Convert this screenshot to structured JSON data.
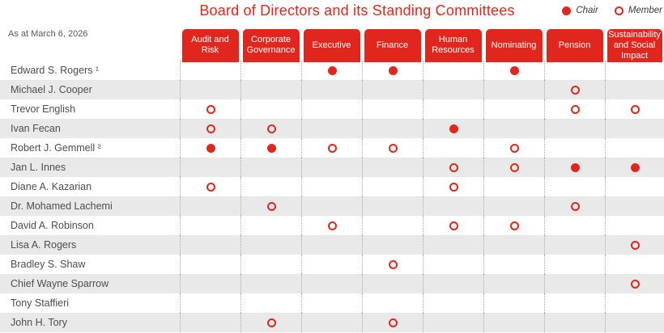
{
  "title": "Board of Directors and its Standing Committees",
  "as_at": "As at March 6, 2026",
  "legend": {
    "chair_label": "Chair",
    "member_label": "Member",
    "chair_icon": "filled-circle-icon",
    "member_icon": "open-circle-icon"
  },
  "colors": {
    "red": "#E1261D",
    "stripe": "#E9E9E9",
    "divider": "#ABABAB",
    "text": "#4E4E4E"
  },
  "columns": [
    "Audit and Risk",
    "Corporate Governance",
    "Executive",
    "Finance",
    "Human Resources",
    "Nominating",
    "Pension",
    "Sustainability and Social Impact"
  ],
  "rows": [
    {
      "name": "Edward S. Rogers ¹",
      "cells": [
        "",
        "",
        "chair",
        "chair",
        "",
        "chair",
        "",
        ""
      ]
    },
    {
      "name": "Michael J. Cooper",
      "cells": [
        "",
        "",
        "",
        "",
        "",
        "",
        "member",
        ""
      ]
    },
    {
      "name": "Trevor English",
      "cells": [
        "member",
        "",
        "",
        "",
        "",
        "",
        "member",
        "member"
      ]
    },
    {
      "name": "Ivan Fecan",
      "cells": [
        "member",
        "member",
        "",
        "",
        "chair",
        "",
        "",
        ""
      ]
    },
    {
      "name": "Robert J. Gemmell ²",
      "cells": [
        "chair",
        "chair",
        "member",
        "member",
        "",
        "member",
        "",
        ""
      ]
    },
    {
      "name": "Jan L. Innes",
      "cells": [
        "",
        "",
        "",
        "",
        "member",
        "member",
        "chair",
        "chair"
      ]
    },
    {
      "name": "Diane A. Kazarian",
      "cells": [
        "member",
        "",
        "",
        "",
        "member",
        "",
        "",
        ""
      ]
    },
    {
      "name": "Dr. Mohamed Lachemi",
      "cells": [
        "",
        "member",
        "",
        "",
        "",
        "",
        "member",
        ""
      ]
    },
    {
      "name": "David A. Robinson",
      "cells": [
        "",
        "",
        "member",
        "",
        "member",
        "member",
        "",
        ""
      ]
    },
    {
      "name": "Lisa A. Rogers",
      "cells": [
        "",
        "",
        "",
        "",
        "",
        "",
        "",
        "member"
      ]
    },
    {
      "name": "Bradley S. Shaw",
      "cells": [
        "",
        "",
        "",
        "member",
        "",
        "",
        "",
        ""
      ]
    },
    {
      "name": "Chief Wayne Sparrow",
      "cells": [
        "",
        "",
        "",
        "",
        "",
        "",
        "",
        "member"
      ]
    },
    {
      "name": "Tony Staffieri",
      "cells": [
        "",
        "",
        "",
        "",
        "",
        "",
        "",
        ""
      ]
    },
    {
      "name": "John H. Tory",
      "cells": [
        "",
        "member",
        "",
        "member",
        "",
        "",
        "",
        ""
      ]
    }
  ]
}
